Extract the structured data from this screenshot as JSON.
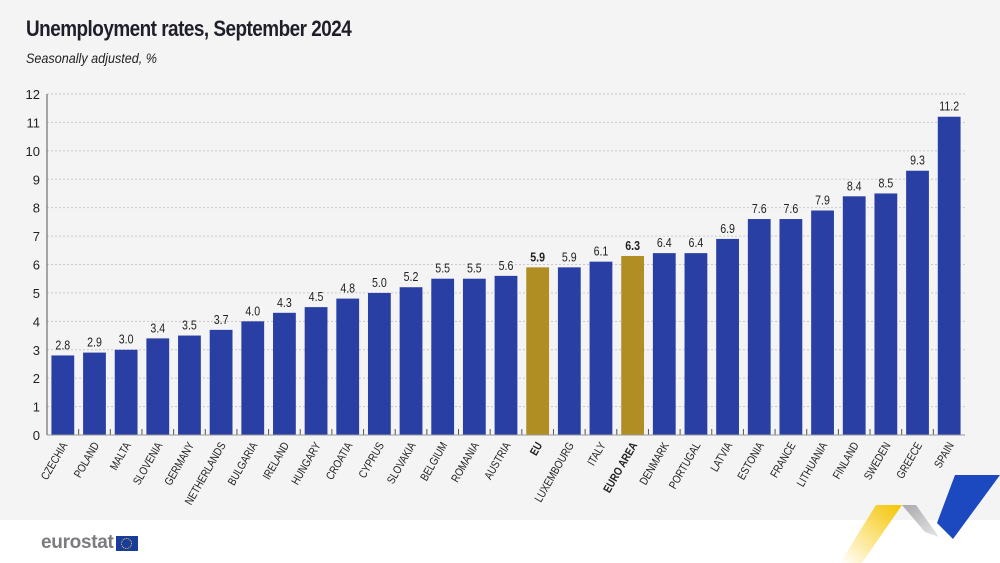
{
  "header": {
    "title": "Unemployment rates, September 2024",
    "subtitle": "Seasonally adjusted, %"
  },
  "footer": {
    "logo_text": "eurostat",
    "flag_icon": "eu-flag-icon",
    "decoration": "eurostat-ribbon-graphic"
  },
  "colors": {
    "country_bar": "#2a3fa3",
    "aggregate_bar": "#b08e24",
    "grid": "#c9c9cc",
    "axis": "#555555",
    "text": "#222222"
  },
  "chart_data": {
    "type": "bar",
    "title": "Unemployment rates, September 2024",
    "subtitle": "Seasonally adjusted, %",
    "xlabel": "",
    "ylabel": "",
    "ylim": [
      0,
      12
    ],
    "yticks": [
      0,
      1,
      2,
      3,
      4,
      5,
      6,
      7,
      8,
      9,
      10,
      11,
      12
    ],
    "grid": true,
    "legend": "none",
    "categories": [
      "CZECHIA",
      "POLAND",
      "MALTA",
      "SLOVENIA",
      "GERMANY",
      "NETHERLANDS",
      "BULGARIA",
      "IRELAND",
      "HUNGARY",
      "CROATIA",
      "CYPRUS",
      "SLOVAKIA",
      "BELGIUM",
      "ROMANIA",
      "AUSTRIA",
      "EU",
      "LUXEMBOURG",
      "ITALY",
      "EURO AREA",
      "DENMARK",
      "PORTUGAL",
      "LATVIA",
      "ESTONIA",
      "FRANCE",
      "LITHUANIA",
      "FINLAND",
      "SWEDEN",
      "GREECE",
      "SPAIN"
    ],
    "values": [
      2.8,
      2.9,
      3.0,
      3.4,
      3.5,
      3.7,
      4.0,
      4.3,
      4.5,
      4.8,
      5.0,
      5.2,
      5.5,
      5.5,
      5.6,
      5.9,
      5.9,
      6.1,
      6.3,
      6.4,
      6.4,
      6.9,
      7.6,
      7.6,
      7.9,
      8.4,
      8.5,
      9.3,
      11.2
    ],
    "value_labels": [
      "2.8",
      "2.9",
      "3.0",
      "3.4",
      "3.5",
      "3.7",
      "4.0",
      "4.3",
      "4.5",
      "4.8",
      "5.0",
      "5.2",
      "5.5",
      "5.5",
      "5.6",
      "5.9",
      "5.9",
      "6.1",
      "6.3",
      "6.4",
      "6.4",
      "6.9",
      "7.6",
      "7.6",
      "7.9",
      "8.4",
      "8.5",
      "9.3",
      "11.2"
    ],
    "highlighted": [
      "EU",
      "EURO AREA"
    ]
  }
}
